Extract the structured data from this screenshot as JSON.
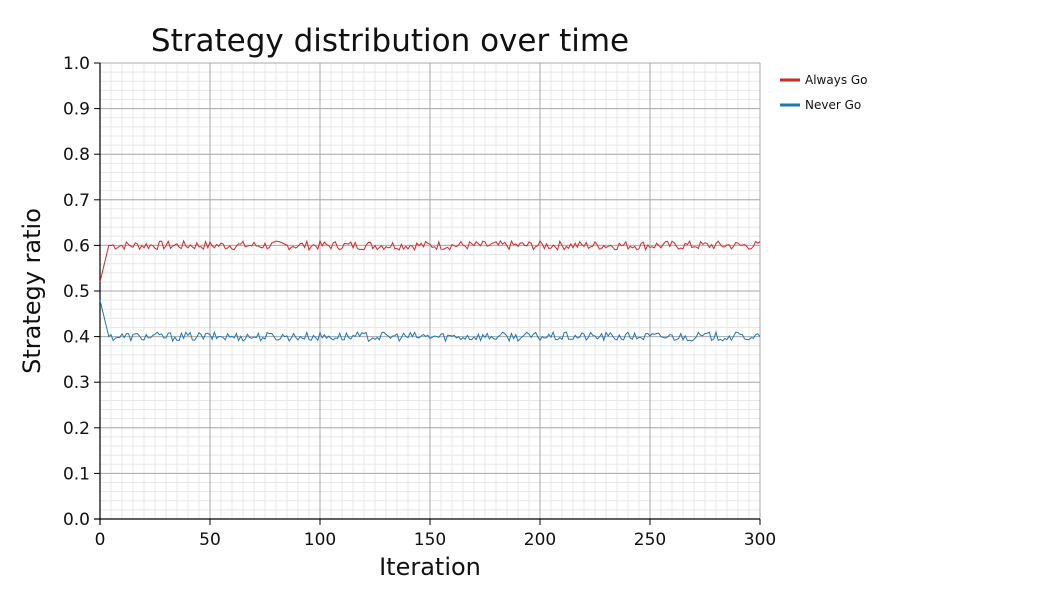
{
  "chart_data": {
    "type": "line",
    "title": "Strategy distribution over time",
    "xlabel": "Iteration",
    "ylabel": "Strategy ratio",
    "xlim": [
      0,
      300
    ],
    "ylim": [
      0.0,
      1.0
    ],
    "x_ticks": [
      0,
      50,
      100,
      150,
      200,
      250,
      300
    ],
    "y_ticks": [
      0.0,
      0.1,
      0.2,
      0.3,
      0.4,
      0.5,
      0.6,
      0.7,
      0.8,
      0.9,
      1.0
    ],
    "x_tick_labels": [
      "0",
      "50",
      "100",
      "150",
      "200",
      "250",
      "300"
    ],
    "y_tick_labels": [
      "0.0",
      "0.1",
      "0.2",
      "0.3",
      "0.4",
      "0.5",
      "0.6",
      "0.7",
      "0.8",
      "0.9",
      "1.0"
    ],
    "grid": true,
    "legend_position": "right",
    "series": [
      {
        "name": "Always Go",
        "color": "#d62728",
        "start": 0.52,
        "equilibrium": 0.6,
        "amplitude": 0.01,
        "points": 301
      },
      {
        "name": "Never Go",
        "color": "#1f77b4",
        "start": 0.48,
        "equilibrium": 0.4,
        "amplitude": 0.01,
        "points": 301
      }
    ]
  }
}
